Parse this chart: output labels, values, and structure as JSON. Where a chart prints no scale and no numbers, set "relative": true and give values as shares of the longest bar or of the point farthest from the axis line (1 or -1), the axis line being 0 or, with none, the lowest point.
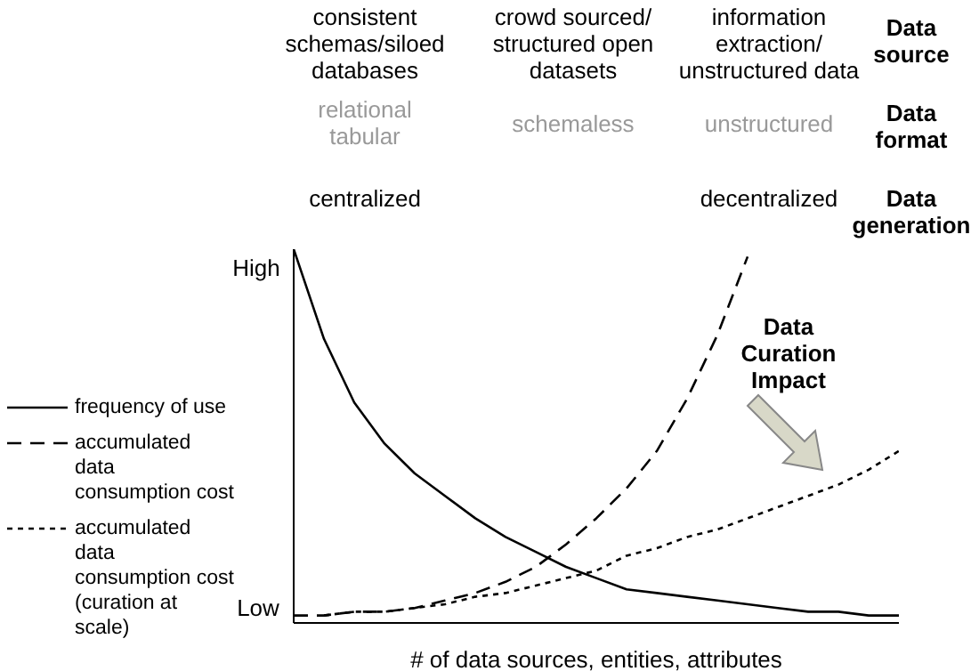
{
  "chart_data": {
    "type": "line",
    "relative": true,
    "xlabel": "# of data sources, entities, attributes",
    "categories": [
      null,
      null,
      null,
      null,
      null,
      null,
      null,
      null,
      null,
      null,
      null,
      null,
      null,
      null,
      null,
      null,
      null,
      null,
      null,
      null,
      null
    ],
    "legend": "left",
    "marker": "none",
    "series": [
      {
        "name": "frequency of use",
        "color": "#000000",
        "line_style": "solid",
        "values": [
          1.0,
          0.76,
          0.59,
          0.48,
          0.4,
          0.34,
          0.28,
          0.23,
          0.19,
          0.15,
          0.12,
          0.09,
          0.08,
          0.07,
          0.06,
          0.05,
          0.04,
          0.03,
          0.03,
          0.02,
          0.02
        ]
      },
      {
        "name": "accumulated data consumption cost",
        "color": "#000000",
        "line_style": "dashed",
        "values": [
          0.02,
          0.02,
          0.03,
          0.03,
          0.04,
          0.06,
          0.08,
          0.11,
          0.15,
          0.21,
          0.28,
          0.36,
          0.46,
          0.6,
          0.77,
          0.98,
          null,
          null,
          null,
          null,
          null
        ]
      },
      {
        "name": "accumulated data consumption cost (curation at scale)",
        "color": "#000000",
        "line_style": "dotted",
        "values": [
          null,
          0.02,
          0.03,
          0.03,
          0.04,
          0.05,
          0.07,
          0.08,
          0.1,
          0.12,
          0.14,
          0.18,
          0.2,
          0.23,
          0.25,
          0.28,
          0.31,
          0.34,
          0.37,
          0.41,
          0.46
        ]
      }
    ],
    "annotations": [
      "consistent schemas/siloed databases",
      "crowd sourced/ structured open datasets",
      "information extraction/ unstructured data",
      "Data source",
      "relational tabular",
      "schemaless",
      "unstructured",
      "Data format",
      "centralized",
      "decentralized",
      "Data generation",
      "Data Curation Impact",
      "High",
      "Low"
    ]
  }
}
